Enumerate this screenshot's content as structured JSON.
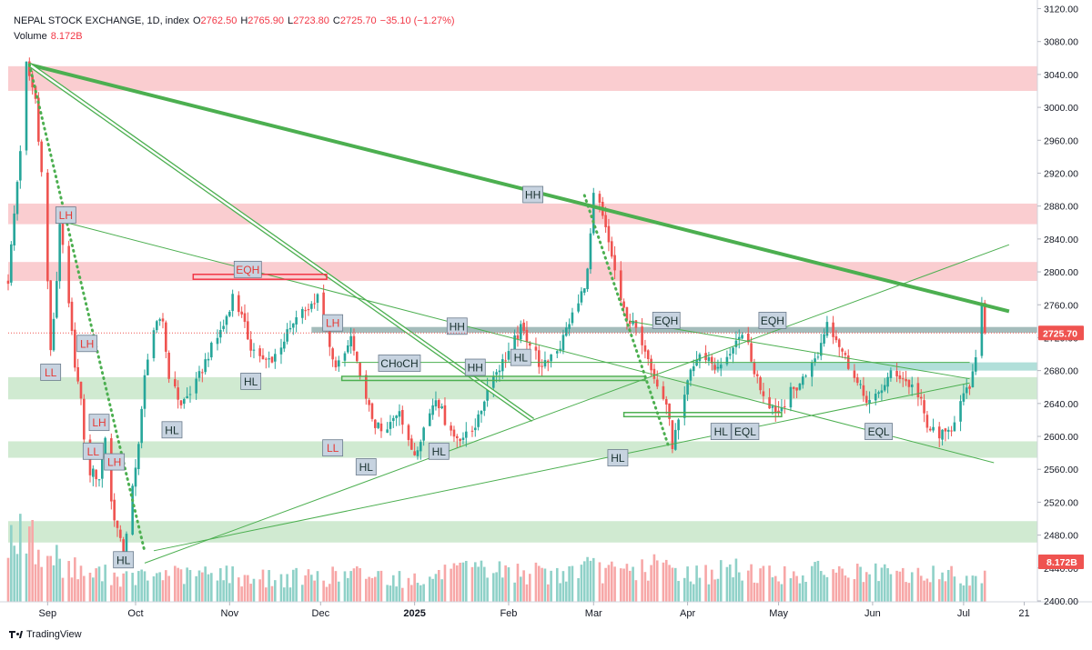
{
  "header": {
    "symbol": "NEPAL STOCK EXCHANGE, 1D, index",
    "o_label": "O",
    "o_value": "2762.50",
    "h_label": "H",
    "h_value": "2765.90",
    "l_label": "L",
    "l_value": "2723.80",
    "c_label": "C",
    "c_value": "2725.70",
    "change": "−35.10 (−1.27%)",
    "volume_label": "Volume",
    "volume_value": "8.172B"
  },
  "footer": {
    "brand": "TradingView"
  },
  "colors": {
    "up": "#26a69a",
    "down": "#ef5350",
    "vol_up": "#8fd1c8",
    "vol_down": "#f7a7a7",
    "supply_zone": "#f9c4c8",
    "demand_zone": "#c8e6c9",
    "gray_zone": "#9ab5b4",
    "teal_zone": "#a3d9d2",
    "trend": "#4caf50",
    "label_bg": "#c7d3e0"
  },
  "chart_data": {
    "type": "candlestick",
    "title": "NEPAL STOCK EXCHANGE, 1D, index",
    "ylim": [
      2400,
      3130
    ],
    "y_ticks": [
      "3120.00",
      "3080.00",
      "3040.00",
      "3000.00",
      "2960.00",
      "2920.00",
      "2880.00",
      "2840.00",
      "2800.00",
      "2760.00",
      "2720.00",
      "2680.00",
      "2640.00",
      "2600.00",
      "2560.00",
      "2520.00",
      "2480.00",
      "2440.00",
      "2400.00"
    ],
    "x_ticks": [
      {
        "label": "Sep",
        "day": 13
      },
      {
        "label": "Oct",
        "day": 42
      },
      {
        "label": "Nov",
        "day": 73
      },
      {
        "label": "Dec",
        "day": 103
      },
      {
        "label": "2025",
        "day": 134
      },
      {
        "label": "Feb",
        "day": 165
      },
      {
        "label": "Mar",
        "day": 193
      },
      {
        "label": "Apr",
        "day": 224
      },
      {
        "label": "May",
        "day": 254
      },
      {
        "label": "Jun",
        "day": 285
      },
      {
        "label": "Jul",
        "day": 315
      },
      {
        "label": "21",
        "day": 335
      }
    ],
    "current_price": "2725.70",
    "current_volume": "8.172B",
    "anchors": [
      [
        0,
        2790
      ],
      [
        5,
        2990
      ],
      [
        6,
        3052
      ],
      [
        9,
        3010
      ],
      [
        11,
        2920
      ],
      [
        13,
        2790
      ],
      [
        14,
        2700
      ],
      [
        16,
        2790
      ],
      [
        17,
        2862
      ],
      [
        19,
        2790
      ],
      [
        22,
        2690
      ],
      [
        24,
        2640
      ],
      [
        26,
        2560
      ],
      [
        30,
        2550
      ],
      [
        32,
        2600
      ],
      [
        34,
        2520
      ],
      [
        37,
        2470
      ],
      [
        38,
        2460
      ],
      [
        42,
        2560
      ],
      [
        45,
        2670
      ],
      [
        48,
        2730
      ],
      [
        51,
        2740
      ],
      [
        53,
        2670
      ],
      [
        57,
        2640
      ],
      [
        61,
        2655
      ],
      [
        66,
        2700
      ],
      [
        71,
        2735
      ],
      [
        74,
        2770
      ],
      [
        76,
        2755
      ],
      [
        80,
        2710
      ],
      [
        84,
        2690
      ],
      [
        87,
        2695
      ],
      [
        93,
        2730
      ],
      [
        97,
        2750
      ],
      [
        100,
        2760
      ],
      [
        102,
        2775
      ],
      [
        104,
        2740
      ],
      [
        107,
        2690
      ],
      [
        110,
        2690
      ],
      [
        113,
        2720
      ],
      [
        117,
        2650
      ],
      [
        121,
        2615
      ],
      [
        124,
        2600
      ],
      [
        129,
        2635
      ],
      [
        132,
        2590
      ],
      [
        134,
        2580
      ],
      [
        138,
        2620
      ],
      [
        141,
        2650
      ],
      [
        144,
        2620
      ],
      [
        147,
        2600
      ],
      [
        151,
        2600
      ],
      [
        155,
        2620
      ],
      [
        158,
        2660
      ],
      [
        161,
        2680
      ],
      [
        163,
        2690
      ],
      [
        166,
        2710
      ],
      [
        169,
        2730
      ],
      [
        172,
        2715
      ],
      [
        174,
        2700
      ],
      [
        176,
        2680
      ],
      [
        179,
        2700
      ],
      [
        182,
        2710
      ],
      [
        185,
        2740
      ],
      [
        188,
        2760
      ],
      [
        191,
        2800
      ],
      [
        193,
        2890
      ],
      [
        195,
        2880
      ],
      [
        197,
        2850
      ],
      [
        199,
        2820
      ],
      [
        202,
        2760
      ],
      [
        205,
        2740
      ],
      [
        208,
        2725
      ],
      [
        211,
        2700
      ],
      [
        214,
        2660
      ],
      [
        217,
        2640
      ],
      [
        219,
        2590
      ],
      [
        222,
        2630
      ],
      [
        225,
        2680
      ],
      [
        228,
        2700
      ],
      [
        231,
        2695
      ],
      [
        234,
        2680
      ],
      [
        237,
        2700
      ],
      [
        240,
        2710
      ],
      [
        243,
        2725
      ],
      [
        245,
        2690
      ],
      [
        248,
        2660
      ],
      [
        251,
        2640
      ],
      [
        254,
        2630
      ],
      [
        257,
        2650
      ],
      [
        260,
        2660
      ],
      [
        264,
        2680
      ],
      [
        267,
        2700
      ],
      [
        270,
        2740
      ],
      [
        273,
        2720
      ],
      [
        276,
        2695
      ],
      [
        279,
        2670
      ],
      [
        282,
        2650
      ],
      [
        285,
        2640
      ],
      [
        289,
        2665
      ],
      [
        292,
        2680
      ],
      [
        295,
        2670
      ],
      [
        298,
        2660
      ],
      [
        301,
        2640
      ],
      [
        303,
        2610
      ],
      [
        306,
        2605
      ],
      [
        309,
        2600
      ],
      [
        311,
        2612
      ],
      [
        314,
        2640
      ],
      [
        317,
        2660
      ],
      [
        319,
        2690
      ],
      [
        320,
        2740
      ],
      [
        321,
        2762
      ],
      [
        322,
        2725
      ]
    ],
    "volume_anchors": [
      [
        0,
        7.5
      ],
      [
        8,
        6.5
      ],
      [
        20,
        3.8
      ],
      [
        30,
        3.0
      ],
      [
        40,
        2.5
      ],
      [
        48,
        3.0
      ],
      [
        60,
        2.8
      ],
      [
        70,
        3.2
      ],
      [
        80,
        2.5
      ],
      [
        95,
        2.6
      ],
      [
        105,
        2.7
      ],
      [
        118,
        3.0
      ],
      [
        130,
        2.5
      ],
      [
        145,
        3.0
      ],
      [
        160,
        3.4
      ],
      [
        170,
        3.1
      ],
      [
        180,
        2.9
      ],
      [
        190,
        3.6
      ],
      [
        200,
        3.2
      ],
      [
        215,
        3.8
      ],
      [
        225,
        3.0
      ],
      [
        240,
        3.4
      ],
      [
        255,
        3.0
      ],
      [
        270,
        3.2
      ],
      [
        285,
        3.0
      ],
      [
        300,
        2.8
      ],
      [
        310,
        3.0
      ],
      [
        322,
        2.7
      ]
    ],
    "zones": [
      {
        "kind": "supply",
        "from": 3020,
        "to": 3050
      },
      {
        "kind": "supply",
        "from": 2858,
        "to": 2883
      },
      {
        "kind": "supply",
        "from": 2789,
        "to": 2812
      },
      {
        "kind": "gray",
        "from": 2726,
        "to": 2733,
        "start_day": 100
      },
      {
        "kind": "teal",
        "from": 2680,
        "to": 2690,
        "start_day": 232
      },
      {
        "kind": "demand",
        "from": 2645,
        "to": 2672
      },
      {
        "kind": "demand",
        "from": 2574,
        "to": 2594
      },
      {
        "kind": "demand",
        "from": 2471,
        "to": 2497
      }
    ],
    "trendlines": [
      {
        "kind": "thick",
        "x1": 7,
        "y1": 3052,
        "x2": 330,
        "y2": 2752
      },
      {
        "kind": "double",
        "x1": 7,
        "y1": 3052,
        "x2": 173,
        "y2": 2620
      },
      {
        "kind": "dotted",
        "x1": 7,
        "y1": 3052,
        "x2": 45,
        "y2": 2460
      },
      {
        "kind": "dotted",
        "x1": 190,
        "y1": 2893,
        "x2": 218,
        "y2": 2585
      },
      {
        "kind": "thin",
        "x1": 17,
        "y1": 2862,
        "x2": 325,
        "y2": 2568
      },
      {
        "kind": "thin",
        "x1": 45,
        "y1": 2446,
        "x2": 330,
        "y2": 2833
      },
      {
        "kind": "thin",
        "x1": 48,
        "y1": 2461,
        "x2": 317,
        "y2": 2665
      },
      {
        "kind": "thin",
        "x1": 110,
        "y1": 2690,
        "x2": 317,
        "y2": 2690
      },
      {
        "kind": "thin",
        "x1": 205,
        "y1": 2740,
        "x2": 317,
        "y2": 2670
      }
    ],
    "boxes": [
      {
        "x1": 61,
        "y1": 2791,
        "x2": 105,
        "y2": 2797,
        "color": "red"
      },
      {
        "x1": 110,
        "y1": 2668,
        "x2": 210,
        "y2": 2673,
        "color": "green"
      },
      {
        "x1": 203,
        "y1": 2624,
        "x2": 255,
        "y2": 2629,
        "color": "green"
      }
    ],
    "markers": [
      {
        "text": "LH",
        "day": 19,
        "price": 2869,
        "color": "red"
      },
      {
        "text": "LL",
        "day": 14,
        "price": 2678,
        "color": "red"
      },
      {
        "text": "LH",
        "day": 26,
        "price": 2713,
        "color": "red"
      },
      {
        "text": "LH",
        "day": 30,
        "price": 2617,
        "color": "red"
      },
      {
        "text": "LL",
        "day": 28,
        "price": 2582,
        "color": "red"
      },
      {
        "text": "LH",
        "day": 35,
        "price": 2569,
        "color": "red"
      },
      {
        "text": "HL",
        "day": 38,
        "price": 2450,
        "color": "black"
      },
      {
        "text": "HL",
        "day": 54,
        "price": 2608,
        "color": "black"
      },
      {
        "text": "EQH",
        "day": 79,
        "price": 2803,
        "color": "red"
      },
      {
        "text": "HL",
        "day": 80,
        "price": 2667,
        "color": "black"
      },
      {
        "text": "LH",
        "day": 107,
        "price": 2738,
        "color": "red"
      },
      {
        "text": "LL",
        "day": 107,
        "price": 2586,
        "color": "red"
      },
      {
        "text": "HL",
        "day": 118,
        "price": 2563,
        "color": "black"
      },
      {
        "text": "CHoCH",
        "day": 129,
        "price": 2689,
        "color": "black"
      },
      {
        "text": "HL",
        "day": 142,
        "price": 2582,
        "color": "black"
      },
      {
        "text": "HH",
        "day": 148,
        "price": 2734,
        "color": "black"
      },
      {
        "text": "HH",
        "day": 154,
        "price": 2684,
        "color": "black"
      },
      {
        "text": "HL",
        "day": 169,
        "price": 2696,
        "color": "black"
      },
      {
        "text": "HH",
        "day": 173,
        "price": 2894,
        "color": "black"
      },
      {
        "text": "HL",
        "day": 201,
        "price": 2574,
        "color": "black"
      },
      {
        "text": "EQH",
        "day": 217,
        "price": 2741,
        "color": "black"
      },
      {
        "text": "HL",
        "day": 235,
        "price": 2606,
        "color": "black"
      },
      {
        "text": "EQL",
        "day": 243,
        "price": 2606,
        "color": "black"
      },
      {
        "text": "EQH",
        "day": 252,
        "price": 2741,
        "color": "black"
      },
      {
        "text": "EQL",
        "day": 287,
        "price": 2606,
        "color": "black"
      }
    ]
  }
}
